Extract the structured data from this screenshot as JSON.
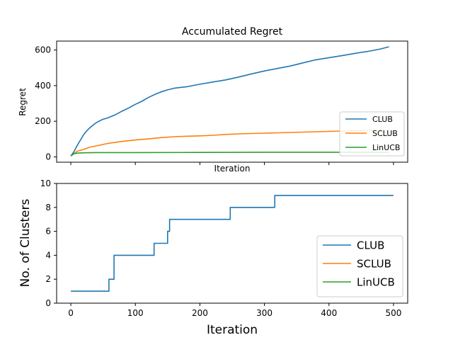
{
  "chart_data": [
    {
      "type": "line",
      "title": "Accumulated Regret",
      "xlabel": "Iteration",
      "ylabel": "Regret",
      "xlim": [
        -22,
        522
      ],
      "ylim": [
        -30,
        650
      ],
      "x_ticks": [
        0,
        100,
        200,
        300,
        400,
        500
      ],
      "x_tick_labels_visible": false,
      "y_ticks": [
        0,
        200,
        400,
        600
      ],
      "y_tick_labels": [
        "0",
        "200",
        "400",
        "600"
      ],
      "grid": false,
      "legend_position": "lower-right",
      "series": [
        {
          "name": "CLUB",
          "color": "#1f77b4",
          "points": [
            [
              0,
              5
            ],
            [
              5,
              30
            ],
            [
              10,
              65
            ],
            [
              15,
              95
            ],
            [
              20,
              125
            ],
            [
              25,
              148
            ],
            [
              30,
              165
            ],
            [
              35,
              180
            ],
            [
              40,
              193
            ],
            [
              45,
              203
            ],
            [
              50,
              211
            ],
            [
              55,
              216
            ],
            [
              60,
              223
            ],
            [
              70,
              238
            ],
            [
              80,
              258
            ],
            [
              90,
              275
            ],
            [
              100,
              295
            ],
            [
              110,
              312
            ],
            [
              120,
              333
            ],
            [
              130,
              350
            ],
            [
              140,
              365
            ],
            [
              150,
              376
            ],
            [
              160,
              385
            ],
            [
              170,
              390
            ],
            [
              180,
              394
            ],
            [
              190,
              401
            ],
            [
              200,
              408
            ],
            [
              220,
              420
            ],
            [
              240,
              432
            ],
            [
              260,
              448
            ],
            [
              280,
              466
            ],
            [
              300,
              482
            ],
            [
              320,
              496
            ],
            [
              340,
              510
            ],
            [
              360,
              528
            ],
            [
              380,
              545
            ],
            [
              400,
              557
            ],
            [
              420,
              568
            ],
            [
              440,
              581
            ],
            [
              460,
              592
            ],
            [
              480,
              606
            ],
            [
              493,
              618
            ]
          ]
        },
        {
          "name": "SCLUB",
          "color": "#ff7f0e",
          "points": [
            [
              0,
              5
            ],
            [
              5,
              18
            ],
            [
              10,
              32
            ],
            [
              20,
              42
            ],
            [
              30,
              55
            ],
            [
              40,
              62
            ],
            [
              50,
              70
            ],
            [
              60,
              77
            ],
            [
              70,
              82
            ],
            [
              80,
              87
            ],
            [
              100,
              95
            ],
            [
              120,
              101
            ],
            [
              140,
              108
            ],
            [
              160,
              113
            ],
            [
              180,
              116
            ],
            [
              200,
              118
            ],
            [
              220,
              121
            ],
            [
              240,
              126
            ],
            [
              260,
              129
            ],
            [
              280,
              131
            ],
            [
              300,
              133
            ],
            [
              320,
              135
            ],
            [
              340,
              137
            ],
            [
              360,
              139
            ],
            [
              380,
              141
            ],
            [
              400,
              143
            ],
            [
              420,
              145
            ],
            [
              440,
              146
            ],
            [
              460,
              148
            ],
            [
              480,
              148
            ]
          ]
        },
        {
          "name": "LinUCB",
          "color": "#2ca02c",
          "points": [
            [
              0,
              5
            ],
            [
              5,
              18
            ],
            [
              10,
              21
            ],
            [
              20,
              23
            ],
            [
              40,
              24
            ],
            [
              60,
              24
            ],
            [
              100,
              24
            ],
            [
              200,
              25
            ],
            [
              300,
              26
            ],
            [
              400,
              26
            ],
            [
              493,
              26
            ]
          ]
        }
      ]
    },
    {
      "type": "line",
      "title": "",
      "xlabel": "Iteration",
      "ylabel": "No. of Clusters",
      "xlim": [
        -22,
        522
      ],
      "ylim": [
        0,
        10
      ],
      "x_ticks": [
        0,
        100,
        200,
        300,
        400,
        500
      ],
      "x_tick_labels": [
        "0",
        "100",
        "200",
        "300",
        "400",
        "500"
      ],
      "y_ticks": [
        0,
        2,
        4,
        6,
        8,
        10
      ],
      "y_tick_labels": [
        "0",
        "2",
        "4",
        "6",
        "8",
        "10"
      ],
      "grid": false,
      "legend_position": "lower-right",
      "series": [
        {
          "name": "CLUB",
          "color": "#1f77b4",
          "points": [
            [
              0,
              1
            ],
            [
              59,
              1
            ],
            [
              59,
              2
            ],
            [
              67,
              2
            ],
            [
              67,
              4
            ],
            [
              129,
              4
            ],
            [
              129,
              5
            ],
            [
              150,
              5
            ],
            [
              150,
              6
            ],
            [
              153,
              6
            ],
            [
              153,
              7
            ],
            [
              247,
              7
            ],
            [
              247,
              8
            ],
            [
              316,
              8
            ],
            [
              316,
              9
            ],
            [
              500,
              9
            ]
          ]
        },
        {
          "name": "SCLUB",
          "color": "#ff7f0e",
          "points": []
        },
        {
          "name": "LinUCB",
          "color": "#2ca02c",
          "points": []
        }
      ]
    }
  ]
}
